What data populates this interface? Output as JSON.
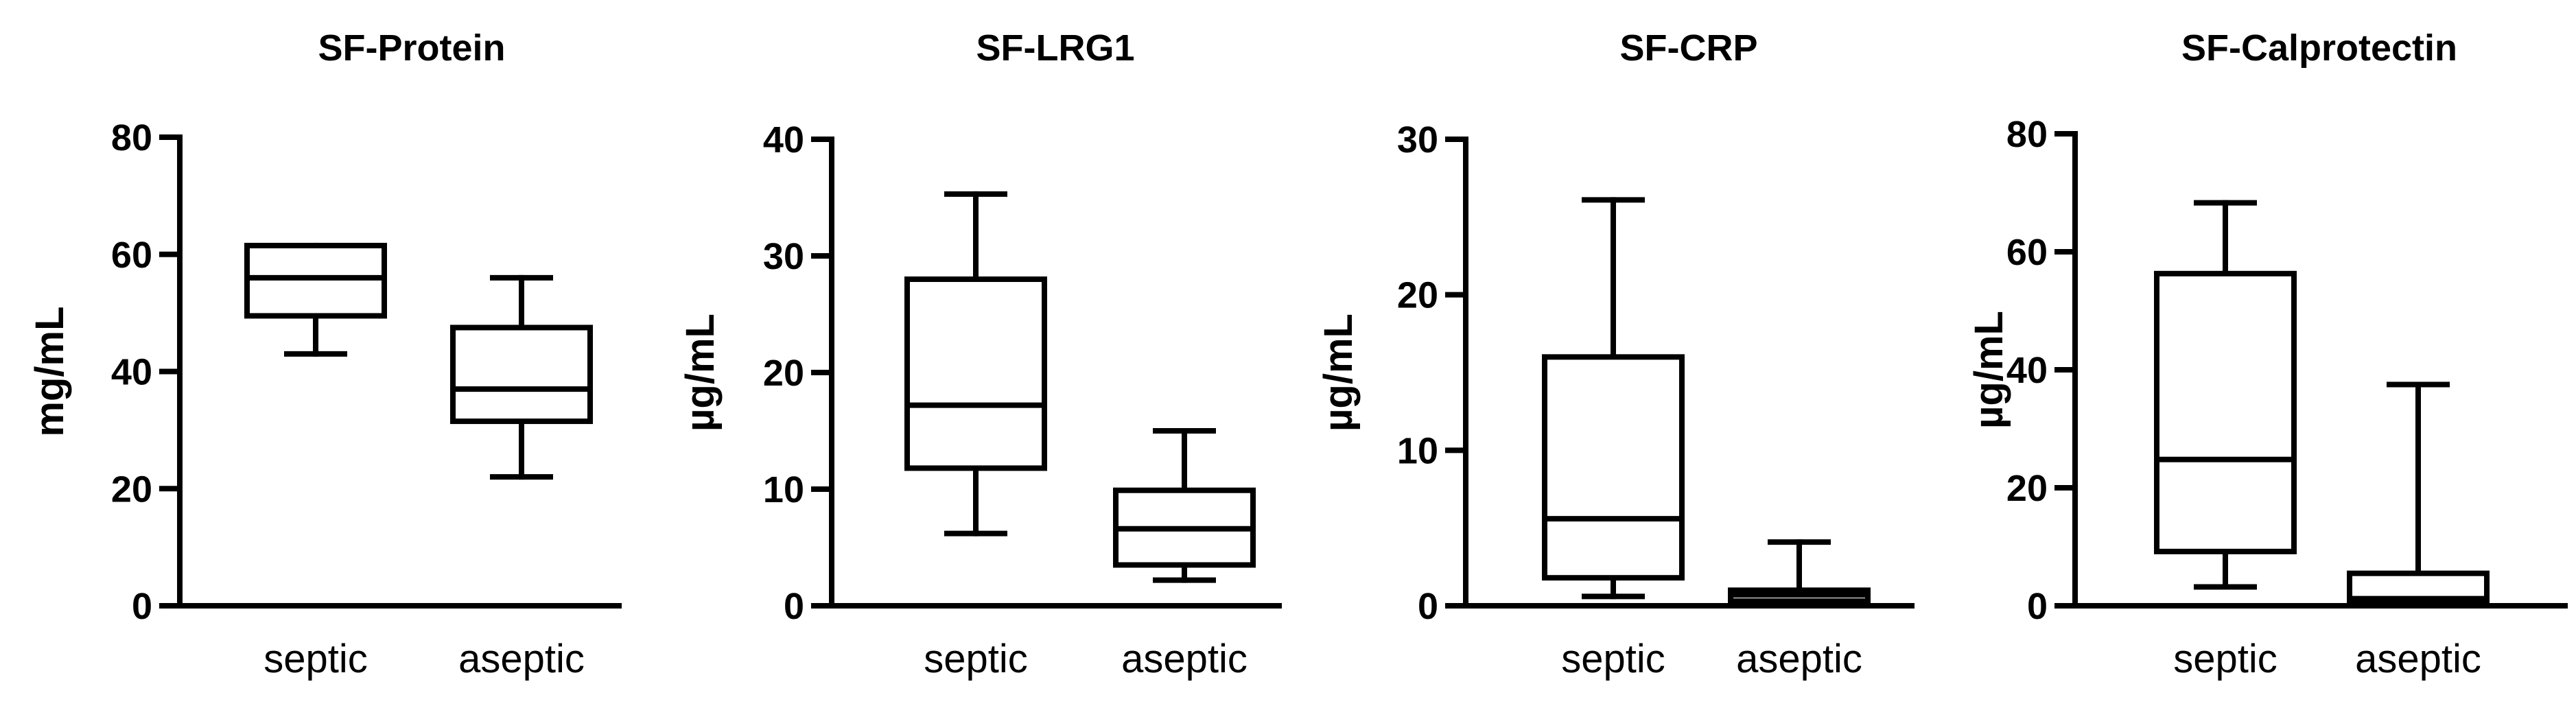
{
  "chart_data": [
    {
      "type": "box",
      "title": "SF-Protein",
      "ylabel": "mg/mL",
      "ylim": [
        0,
        80
      ],
      "yticks": [
        0,
        20,
        40,
        60,
        80
      ],
      "categories": [
        "septic",
        "aseptic"
      ],
      "boxes": [
        {
          "category": "septic",
          "min": 43,
          "q1": 49.5,
          "median": 56,
          "q3": 61.5,
          "max": 61.5
        },
        {
          "category": "aseptic",
          "min": 22,
          "q1": 31.5,
          "median": 37,
          "q3": 47.5,
          "max": 56
        }
      ]
    },
    {
      "type": "box",
      "title": "SF-LRG1",
      "ylabel": "µg/mL",
      "ylim": [
        0,
        40
      ],
      "yticks": [
        0,
        10,
        20,
        30,
        40
      ],
      "categories": [
        "septic",
        "aseptic"
      ],
      "boxes": [
        {
          "category": "septic",
          "min": 6.2,
          "q1": 11.8,
          "median": 17.2,
          "q3": 28,
          "max": 35.3
        },
        {
          "category": "aseptic",
          "min": 2.2,
          "q1": 3.5,
          "median": 6.6,
          "q3": 9.9,
          "max": 15
        }
      ]
    },
    {
      "type": "box",
      "title": "SF-CRP",
      "ylabel": "µg/mL",
      "ylim": [
        0,
        30
      ],
      "yticks": [
        0,
        10,
        20,
        30
      ],
      "categories": [
        "septic",
        "aseptic"
      ],
      "boxes": [
        {
          "category": "septic",
          "min": 0.6,
          "q1": 1.8,
          "median": 5.6,
          "q3": 16,
          "max": 26.1
        },
        {
          "category": "aseptic",
          "min": 0.1,
          "q1": 0.3,
          "median": 0.7,
          "q3": 1.0,
          "max": 4.1
        }
      ]
    },
    {
      "type": "box",
      "title": "SF-Calprotectin",
      "ylabel": "µg/mL",
      "ylim": [
        0,
        80
      ],
      "yticks": [
        0,
        20,
        40,
        60,
        80
      ],
      "categories": [
        "septic",
        "aseptic"
      ],
      "boxes": [
        {
          "category": "septic",
          "min": 3.2,
          "q1": 9.2,
          "median": 24.8,
          "q3": 56.3,
          "max": 68.3
        },
        {
          "category": "aseptic",
          "min": 0.2,
          "q1": 0.4,
          "median": 1.2,
          "q3": 5.5,
          "max": 37.5
        }
      ]
    }
  ]
}
